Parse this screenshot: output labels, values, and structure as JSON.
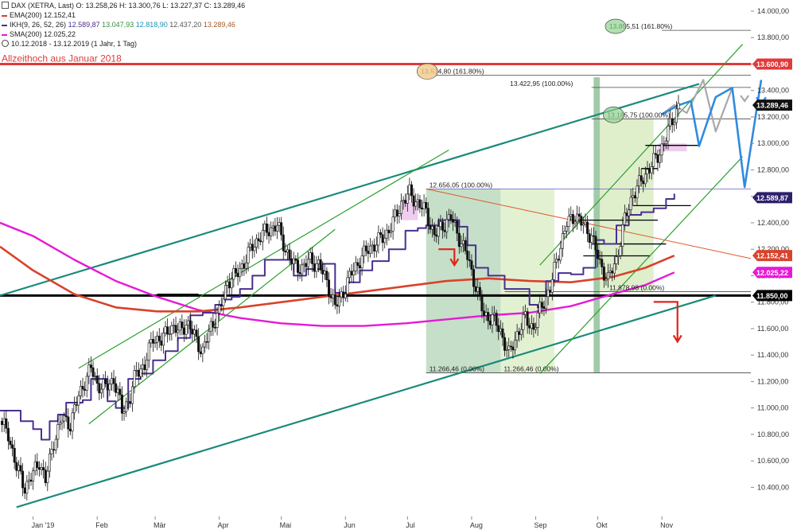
{
  "header": {
    "main_line": "DAX (XETRA, Last)  O: 13.258,26  H: 13.300,76  L: 13.227,37  C: 13.289,46",
    "ema_label": "EMA(200)  12.152,41",
    "ikh_label": "IKH(9, 26, 52, 26)",
    "ikh_values": [
      "12.589,87",
      "13.047,93",
      "12.818,90",
      "12.437,20",
      "13.289,46"
    ],
    "sma_label": "SMA(200)  12.025,22",
    "range_line": "10.12.2018 - 13.12.2019  (1 Jahr, 1 Tag)"
  },
  "colors": {
    "ema": "#d9422b",
    "ikh": "#4a2f8f",
    "sma": "#e619d6",
    "channel": "#2ca02c",
    "trend": "#1a8a7a",
    "ath": "#e03a3a",
    "projection_blue": "#2f8be0",
    "projection_gray": "#a8a8a8",
    "down_arrow": "#e0241a"
  },
  "chart_data": {
    "type": "candlestick",
    "y_axis": {
      "min": 10300,
      "max": 14000,
      "ticks": [
        "14.000,00",
        "13.800,00",
        "13.600,00",
        "13.400,00",
        "13.200,00",
        "13.000,00",
        "12.800,00",
        "12.600,00",
        "12.400,00",
        "12.200,00",
        "12.000,00",
        "11.800,00",
        "11.600,00",
        "11.400,00",
        "11.200,00",
        "11.000,00",
        "10.800,00",
        "10.600,00",
        "10.400,00"
      ],
      "tick_values": [
        14000,
        13800,
        13600,
        13400,
        13200,
        13000,
        12800,
        12600,
        12400,
        12200,
        12000,
        11800,
        11600,
        11400,
        11200,
        11000,
        10800,
        10600,
        10400
      ]
    },
    "x_axis": {
      "labels": [
        "Jan '19",
        "Feb",
        "Mär",
        "Apr",
        "Mai",
        "Jun",
        "Jul",
        "Aug",
        "Sep",
        "Okt",
        "Nov"
      ],
      "label_days": [
        0,
        31,
        59,
        90,
        120,
        151,
        181,
        212,
        243,
        273,
        304
      ],
      "day_range": [
        -16,
        347
      ]
    },
    "close_points": [
      [
        -16,
        10900
      ],
      [
        -12,
        10800
      ],
      [
        -8,
        10550
      ],
      [
        -4,
        10400
      ],
      [
        0,
        10500
      ],
      [
        3,
        10600
      ],
      [
        6,
        10450
      ],
      [
        10,
        10750
      ],
      [
        14,
        10920
      ],
      [
        18,
        10880
      ],
      [
        22,
        11090
      ],
      [
        25,
        11200
      ],
      [
        28,
        11300
      ],
      [
        31,
        11180
      ],
      [
        35,
        11150
      ],
      [
        39,
        11220
      ],
      [
        43,
        10980
      ],
      [
        47,
        11080
      ],
      [
        50,
        11280
      ],
      [
        54,
        11320
      ],
      [
        58,
        11540
      ],
      [
        62,
        11500
      ],
      [
        66,
        11620
      ],
      [
        70,
        11580
      ],
      [
        74,
        11640
      ],
      [
        78,
        11550
      ],
      [
        82,
        11420
      ],
      [
        86,
        11620
      ],
      [
        90,
        11720
      ],
      [
        94,
        11960
      ],
      [
        98,
        12000
      ],
      [
        102,
        12100
      ],
      [
        106,
        12220
      ],
      [
        110,
        12300
      ],
      [
        114,
        12350
      ],
      [
        118,
        12380
      ],
      [
        122,
        12200
      ],
      [
        126,
        12080
      ],
      [
        130,
        12060
      ],
      [
        134,
        12120
      ],
      [
        138,
        12080
      ],
      [
        142,
        11960
      ],
      [
        146,
        11760
      ],
      [
        150,
        11880
      ],
      [
        154,
        12020
      ],
      [
        158,
        12120
      ],
      [
        162,
        12200
      ],
      [
        166,
        12250
      ],
      [
        170,
        12300
      ],
      [
        174,
        12400
      ],
      [
        178,
        12550
      ],
      [
        182,
        12620
      ],
      [
        186,
        12550
      ],
      [
        190,
        12480
      ],
      [
        194,
        12300
      ],
      [
        198,
        12380
      ],
      [
        202,
        12440
      ],
      [
        206,
        12290
      ],
      [
        210,
        12140
      ],
      [
        214,
        11920
      ],
      [
        218,
        11700
      ],
      [
        222,
        11680
      ],
      [
        226,
        11580
      ],
      [
        230,
        11400
      ],
      [
        234,
        11560
      ],
      [
        238,
        11680
      ],
      [
        242,
        11600
      ],
      [
        246,
        11780
      ],
      [
        250,
        11900
      ],
      [
        254,
        12180
      ],
      [
        258,
        12390
      ],
      [
        262,
        12460
      ],
      [
        266,
        12380
      ],
      [
        270,
        12300
      ],
      [
        274,
        12090
      ],
      [
        278,
        11970
      ],
      [
        282,
        12120
      ],
      [
        286,
        12420
      ],
      [
        290,
        12620
      ],
      [
        294,
        12710
      ],
      [
        298,
        12820
      ],
      [
        302,
        12900
      ],
      [
        306,
        13050
      ],
      [
        310,
        13210
      ],
      [
        312,
        13289
      ]
    ],
    "ikh_kijun": [
      [
        -16,
        10980
      ],
      [
        -10,
        10980
      ],
      [
        -6,
        10900
      ],
      [
        0,
        10840
      ],
      [
        4,
        10760
      ],
      [
        8,
        10900
      ],
      [
        12,
        10950
      ],
      [
        16,
        11040
      ],
      [
        20,
        11040
      ],
      [
        24,
        11060
      ],
      [
        28,
        11220
      ],
      [
        32,
        11220
      ],
      [
        36,
        11050
      ],
      [
        40,
        11000
      ],
      [
        46,
        11220
      ],
      [
        52,
        11260
      ],
      [
        58,
        11360
      ],
      [
        64,
        11430
      ],
      [
        70,
        11530
      ],
      [
        76,
        11700
      ],
      [
        82,
        11720
      ],
      [
        88,
        11780
      ],
      [
        92,
        11820
      ],
      [
        96,
        11840
      ],
      [
        100,
        11900
      ],
      [
        106,
        12000
      ],
      [
        112,
        12120
      ],
      [
        118,
        12120
      ],
      [
        126,
        12000
      ],
      [
        132,
        12050
      ],
      [
        140,
        12090
      ],
      [
        146,
        11870
      ],
      [
        152,
        11950
      ],
      [
        158,
        12040
      ],
      [
        164,
        12110
      ],
      [
        172,
        12200
      ],
      [
        180,
        12340
      ],
      [
        186,
        12360
      ],
      [
        190,
        12380
      ],
      [
        196,
        12420
      ],
      [
        202,
        12420
      ],
      [
        206,
        12370
      ],
      [
        210,
        12230
      ],
      [
        214,
        12060
      ],
      [
        220,
        12000
      ],
      [
        228,
        11900
      ],
      [
        234,
        11900
      ],
      [
        240,
        11780
      ],
      [
        244,
        11760
      ],
      [
        248,
        11960
      ],
      [
        254,
        12020
      ],
      [
        260,
        12010
      ],
      [
        266,
        12060
      ],
      [
        272,
        12270
      ],
      [
        276,
        12240
      ],
      [
        282,
        12380
      ],
      [
        288,
        12460
      ],
      [
        294,
        12480
      ],
      [
        300,
        12510
      ],
      [
        306,
        12580
      ],
      [
        310,
        12620
      ]
    ],
    "ema200": [
      [
        -16,
        12220
      ],
      [
        0,
        12040
      ],
      [
        20,
        11860
      ],
      [
        40,
        11760
      ],
      [
        60,
        11730
      ],
      [
        80,
        11730
      ],
      [
        100,
        11760
      ],
      [
        120,
        11800
      ],
      [
        140,
        11840
      ],
      [
        160,
        11880
      ],
      [
        180,
        11920
      ],
      [
        200,
        11960
      ],
      [
        220,
        11980
      ],
      [
        240,
        11960
      ],
      [
        260,
        11950
      ],
      [
        280,
        11990
      ],
      [
        296,
        12060
      ],
      [
        310,
        12152
      ]
    ],
    "sma200": [
      [
        -16,
        12400
      ],
      [
        0,
        12300
      ],
      [
        20,
        12120
      ],
      [
        40,
        11960
      ],
      [
        60,
        11840
      ],
      [
        80,
        11740
      ],
      [
        100,
        11680
      ],
      [
        120,
        11640
      ],
      [
        140,
        11620
      ],
      [
        160,
        11620
      ],
      [
        180,
        11640
      ],
      [
        200,
        11670
      ],
      [
        220,
        11700
      ],
      [
        240,
        11720
      ],
      [
        260,
        11770
      ],
      [
        280,
        11860
      ],
      [
        296,
        11930
      ],
      [
        310,
        12025
      ]
    ],
    "projection_blue": [
      [
        304,
        13220
      ],
      [
        312,
        13289
      ],
      [
        318,
        13320
      ],
      [
        322,
        12980
      ],
      [
        330,
        13350
      ],
      [
        338,
        13420
      ],
      [
        344,
        12670
      ],
      [
        352,
        13480
      ]
    ],
    "projection_gray": [
      [
        304,
        13220
      ],
      [
        310,
        13290
      ],
      [
        316,
        13230
      ],
      [
        324,
        13480
      ],
      [
        330,
        13090
      ],
      [
        338,
        13420
      ],
      [
        344,
        12670
      ],
      [
        352,
        13480
      ]
    ],
    "horizontal_levels": [
      {
        "label": "Allzeithoch aus Januar 2018",
        "value": 13600,
        "right_label": "13.600,90"
      },
      {
        "value": 11850,
        "right_label": "11.850,00"
      }
    ],
    "price_badges": [
      {
        "label": "13.289,46",
        "value": 13289,
        "bg": "#111111",
        "fg": "#ffffff"
      },
      {
        "label": "12.589,87",
        "value": 12590,
        "bg": "#2d1f6b",
        "fg": "#ffffff"
      },
      {
        "label": "12.152,41",
        "value": 12152,
        "bg": "#d9422b",
        "fg": "#ffffff"
      },
      {
        "label": "12.025,22",
        "value": 12025,
        "bg": "#e619d6",
        "fg": "#ffffff"
      }
    ],
    "fib_notes": [
      {
        "label": "13.855,51 (161.80%)",
        "value": 13855
      },
      {
        "label": "13.514,80 (161.80%)",
        "value": 13515
      },
      {
        "label": "13.422,95 (100.00%)",
        "value": 13423
      },
      {
        "label": "13.185,75 (100.00%)",
        "value": 13186
      },
      {
        "label": "12.656,05 (100.00%)",
        "value": 12656
      },
      {
        "label": "11.878,98 (0.00%)",
        "value": 11879
      },
      {
        "label": "11.266,46 (0.00%)",
        "value": 11266
      },
      {
        "label": "11.266,46 (0.00%)",
        "value": 11266
      }
    ]
  }
}
